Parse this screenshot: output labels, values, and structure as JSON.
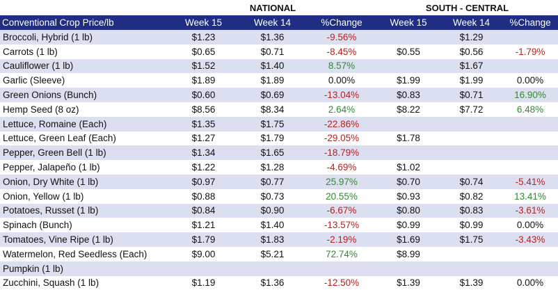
{
  "groups": {
    "national": "NATIONAL",
    "south_central": "SOUTH - CENTRAL"
  },
  "headers": [
    "Conventional Crop Price/lb",
    "Week 15",
    "Week 14",
    "%Change",
    "Week 15",
    "Week 14",
    "%Change"
  ],
  "rows": [
    [
      "Broccoli, Hybrid (1 lb)",
      "$1.23",
      "$1.36",
      "-9.56%",
      "",
      "$1.29",
      ""
    ],
    [
      "Carrots (1 lb)",
      "$0.65",
      "$0.71",
      "-8.45%",
      "$0.55",
      "$0.56",
      "-1.79%"
    ],
    [
      "Cauliflower (1 lb)",
      "$1.52",
      "$1.40",
      "8.57%",
      "",
      "$1.67",
      ""
    ],
    [
      "Garlic (Sleeve)",
      "$1.89",
      "$1.89",
      "0.00%",
      "$1.99",
      "$1.99",
      "0.00%"
    ],
    [
      "Green Onions (Bunch)",
      "$0.60",
      "$0.69",
      "-13.04%",
      "$0.83",
      "$0.71",
      "16.90%"
    ],
    [
      "Hemp Seed (8 oz)",
      "$8.56",
      "$8.34",
      "2.64%",
      "$8.22",
      "$7.72",
      "6.48%"
    ],
    [
      "Lettuce, Romaine (Each)",
      "$1.35",
      "$1.75",
      "-22.86%",
      "",
      "",
      ""
    ],
    [
      "Lettuce, Green Leaf (Each)",
      "$1.27",
      "$1.79",
      "-29.05%",
      "$1.78",
      "",
      ""
    ],
    [
      "Pepper, Green Bell (1 lb)",
      "$1.34",
      "$1.65",
      "-18.79%",
      "",
      "",
      ""
    ],
    [
      "Pepper, Jalapeño (1 lb)",
      "$1.22",
      "$1.28",
      "-4.69%",
      "$1.02",
      "",
      ""
    ],
    [
      "Onion, Dry White (1 lb)",
      "$0.97",
      "$0.77",
      "25.97%",
      "$0.70",
      "$0.74",
      "-5.41%"
    ],
    [
      "Onion, Yellow (1 lb)",
      "$0.88",
      "$0.73",
      "20.55%",
      "$0.93",
      "$0.82",
      "13.41%"
    ],
    [
      "Potatoes, Russet (1 lb)",
      "$0.84",
      "$0.90",
      "-6.67%",
      "$0.80",
      "$0.83",
      "-3.61%"
    ],
    [
      "Spinach (Bunch)",
      "$1.21",
      "$1.40",
      "-13.57%",
      "$0.99",
      "$0.99",
      "0.00%"
    ],
    [
      "Tomatoes, Vine Ripe (1 lb)",
      "$1.79",
      "$1.83",
      "-2.19%",
      "$1.69",
      "$1.75",
      "-3.43%"
    ],
    [
      "Watermelon, Red Seedless (Each)",
      "$9.00",
      "$5.21",
      "72.74%",
      "$8.99",
      "",
      ""
    ],
    [
      "Pumpkin (1 lb)",
      "",
      "",
      "",
      "",
      "",
      ""
    ],
    [
      "Zucchini, Squash (1 lb)",
      "$1.19",
      "$1.36",
      "-12.50%",
      "$1.39",
      "$1.39",
      "0.00%"
    ]
  ],
  "colors": {
    "header_bg": "#1f2d85",
    "band": "#dcdff0",
    "negative": "#b82020",
    "positive": "#2e8b2e"
  }
}
